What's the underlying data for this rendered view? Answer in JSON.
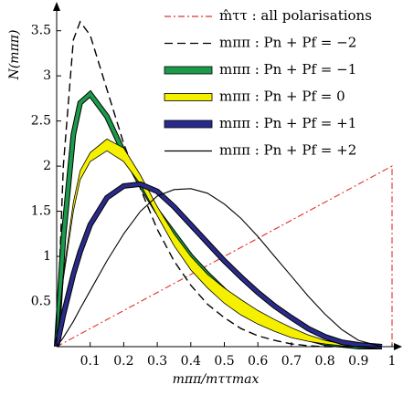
{
  "chart_data": {
    "type": "line",
    "xlabel": "mππ/mττmax",
    "ylabel": "N(mππ)",
    "xlim": [
      0,
      1.03
    ],
    "ylim": [
      0,
      3.79
    ],
    "xticks": [
      0.1,
      0.2,
      0.3,
      0.4,
      0.5,
      0.6,
      0.7,
      0.8,
      0.9,
      1
    ],
    "yticks": [
      0.5,
      1,
      1.5,
      2,
      2.5,
      3,
      3.5
    ],
    "x": [
      0,
      0.02,
      0.05,
      0.07,
      0.1,
      0.15,
      0.2,
      0.25,
      0.3,
      0.35,
      0.4,
      0.45,
      0.5,
      0.55,
      0.6,
      0.65,
      0.7,
      0.75,
      0.8,
      0.85,
      0.9,
      0.97
    ],
    "series": [
      {
        "name": "m̂ττ :  all polarisations",
        "color": "#e0302a",
        "style": "dashdot",
        "x": [
          0,
          1,
          1
        ],
        "values": [
          0,
          2,
          0
        ]
      },
      {
        "name": "mππ :  Pn + Pf = −2",
        "color": "#000000",
        "style": "dashed",
        "values": [
          0,
          2.0,
          3.4,
          3.6,
          3.45,
          2.85,
          2.25,
          1.75,
          1.3,
          0.95,
          0.68,
          0.47,
          0.32,
          0.2,
          0.12,
          0.07,
          0.03,
          0.01,
          0,
          0,
          0,
          0
        ]
      },
      {
        "name": "mππ :  Pn + Pf = −1",
        "color": "#1a9a4a",
        "style": "thick",
        "values": [
          0,
          1.2,
          2.35,
          2.7,
          2.8,
          2.55,
          2.15,
          1.8,
          1.5,
          1.25,
          1.0,
          0.8,
          0.62,
          0.47,
          0.34,
          0.23,
          0.15,
          0.09,
          0.04,
          0.02,
          0,
          0
        ]
      },
      {
        "name": "mππ :  Pn + Pf =   0",
        "color": "#f5f000",
        "style": "band",
        "values": [
          0,
          0.8,
          1.6,
          1.95,
          2.15,
          2.3,
          2.2,
          1.9,
          1.55,
          1.25,
          1.0,
          0.8,
          0.65,
          0.52,
          0.4,
          0.3,
          0.21,
          0.13,
          0.07,
          0.03,
          0.01,
          0
        ],
        "lower": [
          0,
          0.75,
          1.5,
          1.85,
          2.05,
          2.17,
          2.05,
          1.8,
          1.45,
          1.12,
          0.85,
          0.65,
          0.48,
          0.35,
          0.25,
          0.17,
          0.1,
          0.06,
          0.03,
          0.01,
          0,
          0
        ]
      },
      {
        "name": "mππ :  Pn + Pf = +1",
        "color": "#2a2a8a",
        "style": "thick",
        "values": [
          0,
          0.35,
          0.8,
          1.05,
          1.35,
          1.65,
          1.78,
          1.8,
          1.72,
          1.55,
          1.35,
          1.15,
          0.95,
          0.77,
          0.6,
          0.45,
          0.32,
          0.2,
          0.11,
          0.05,
          0.02,
          0
        ]
      },
      {
        "name": "mππ :  Pn + Pf = +2",
        "color": "#000000",
        "style": "solid",
        "values": [
          0,
          0.1,
          0.28,
          0.42,
          0.62,
          0.95,
          1.25,
          1.5,
          1.67,
          1.74,
          1.75,
          1.7,
          1.58,
          1.42,
          1.22,
          1.0,
          0.78,
          0.56,
          0.36,
          0.19,
          0.07,
          0
        ]
      }
    ]
  }
}
